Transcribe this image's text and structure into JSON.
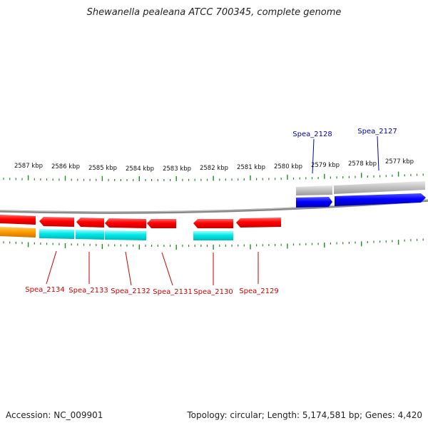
{
  "title": "Shewanella pealeana ATCC 700345, complete genome",
  "footer": {
    "accession": "Accession: NC_009901",
    "summary": "Topology: circular; Length: 5,174,581 bp; Genes: 4,420"
  },
  "scale_labels": [
    "2587 kbp",
    "2586 kbp",
    "2585 kbp",
    "2584 kbp",
    "2583 kbp",
    "2582 kbp",
    "2581 kbp",
    "2580 kbp",
    "2579 kbp",
    "2578 kbp",
    "2577 kbp"
  ],
  "genes_reverse": [
    {
      "label": "Spea_2134",
      "color": "#cc0000"
    },
    {
      "label": "Spea_2133",
      "color": "#cc0000"
    },
    {
      "label": "Spea_2132",
      "color": "#cc0000"
    },
    {
      "label": "Spea_2131",
      "color": "#cc0000"
    },
    {
      "label": "Spea_2130",
      "color": "#cc0000"
    },
    {
      "label": "Spea_2129",
      "color": "#cc0000"
    }
  ],
  "genes_forward": [
    {
      "label": "Spea_2128",
      "color": "#0000aa"
    },
    {
      "label": "Spea_2127",
      "color": "#0000aa"
    }
  ],
  "colors": {
    "reverse_cds": "#ff0000",
    "forward_cds": "#0000ff",
    "reverse_feature": "#00e5e5",
    "forward_feature": "#bbbbbb",
    "rrna_like": "#ff9900",
    "tick": "#228b22",
    "backbone": "#888888"
  }
}
